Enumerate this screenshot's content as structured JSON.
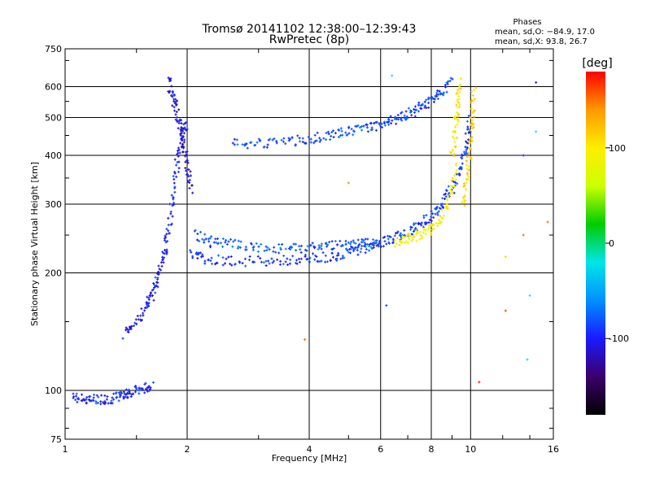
{
  "chart_data": {
    "type": "scatter",
    "title": "Tromsø 20141102 12:38:00–12:39:43",
    "subtitle": "RwPretec (8p)",
    "xlabel": "Frequency [MHz]",
    "ylabel": "Stationary phase Virtual Height [km]",
    "x_scale": "log",
    "y_scale": "log",
    "xlim": [
      1,
      16
    ],
    "ylim": [
      75,
      750
    ],
    "xticks": [
      1,
      2,
      4,
      6,
      8,
      10,
      16
    ],
    "yticks": [
      75,
      100,
      200,
      300,
      400,
      500,
      600,
      750
    ],
    "grid": true,
    "stats": {
      "heading": "Phases",
      "line_o": "mean, sd,O: −84.9, 17.0",
      "line_x": "mean, sd,X:  93.8, 26.7"
    },
    "colorbar": {
      "label": "[deg]",
      "ticks": [
        100,
        0,
        -100
      ],
      "range": [
        -180,
        180
      ],
      "colors": [
        "#000000",
        "#3b006b",
        "#1a1aff",
        "#0090ff",
        "#00e6e6",
        "#00cc00",
        "#ccff00",
        "#ffee00",
        "#ff9900",
        "#ff0000"
      ]
    },
    "traces": [
      {
        "x": [
          1.05,
          1.12,
          1.2,
          1.3,
          1.38,
          1.45,
          1.55,
          1.65
        ],
        "y": [
          96,
          95,
          95,
          95,
          97,
          99,
          101,
          102
        ],
        "phase": -95
      },
      {
        "x": [
          1.4,
          1.5,
          1.6,
          1.65,
          1.7,
          1.75,
          1.8,
          1.85,
          1.9,
          1.95,
          2.0
        ],
        "y": [
          140,
          150,
          165,
          180,
          200,
          220,
          260,
          320,
          400,
          450,
          480
        ],
        "phase": -100
      },
      {
        "x": [
          1.8,
          1.85,
          1.9,
          1.95,
          2.0,
          2.05
        ],
        "y": [
          620,
          560,
          500,
          440,
          380,
          320
        ],
        "phase": -110
      },
      {
        "x": [
          2.05,
          2.2,
          2.5,
          3.0,
          3.5,
          4.0,
          4.5,
          5.0,
          5.5,
          6.0,
          6.5,
          7.0,
          7.5,
          8.0,
          8.5,
          9.0,
          9.5,
          9.8,
          10.0
        ],
        "y": [
          225,
          218,
          215,
          214,
          215,
          217,
          220,
          225,
          232,
          240,
          245,
          255,
          265,
          280,
          300,
          330,
          380,
          430,
          500
        ],
        "phase": -90
      },
      {
        "x": [
          2.1,
          2.3,
          2.6,
          3.0,
          3.5,
          4.0,
          4.5,
          5.0,
          5.5,
          6.0
        ],
        "y": [
          250,
          240,
          236,
          232,
          230,
          232,
          234,
          236,
          238,
          240
        ],
        "phase": -80
      },
      {
        "x": [
          2.6,
          3.0,
          3.5,
          4.0,
          4.5,
          5.0,
          5.5,
          6.0,
          6.5,
          7.0,
          7.5,
          8.0,
          8.5,
          9.0
        ],
        "y": [
          430,
          430,
          432,
          440,
          450,
          460,
          470,
          480,
          495,
          510,
          530,
          550,
          580,
          620
        ],
        "phase": -85
      },
      {
        "x": [
          6.5,
          7.0,
          7.5,
          8.0,
          8.5,
          9.0,
          9.2
        ],
        "y": [
          240,
          245,
          250,
          260,
          280,
          320,
          380
        ],
        "phase": 90
      },
      {
        "x": [
          9.6,
          9.8,
          10.0,
          10.1,
          10.2
        ],
        "y": [
          300,
          350,
          420,
          500,
          600
        ],
        "phase": 110
      },
      {
        "x": [
          9.0,
          9.2,
          9.3,
          9.4
        ],
        "y": [
          400,
          470,
          550,
          620
        ],
        "phase": 100
      }
    ],
    "points": [
      {
        "x": 3.9,
        "y": 135,
        "phase": 150
      },
      {
        "x": 5.0,
        "y": 340,
        "phase": 140
      },
      {
        "x": 6.2,
        "y": 165,
        "phase": -90
      },
      {
        "x": 6.4,
        "y": 640,
        "phase": -20
      },
      {
        "x": 10.5,
        "y": 105,
        "phase": 170
      },
      {
        "x": 12.2,
        "y": 160,
        "phase": 160
      },
      {
        "x": 12.2,
        "y": 220,
        "phase": 110
      },
      {
        "x": 13.5,
        "y": 400,
        "phase": -100
      },
      {
        "x": 13.5,
        "y": 250,
        "phase": 150
      },
      {
        "x": 14.5,
        "y": 615,
        "phase": -110
      },
      {
        "x": 14.5,
        "y": 460,
        "phase": -20
      },
      {
        "x": 15.5,
        "y": 270,
        "phase": 150
      },
      {
        "x": 14.0,
        "y": 175,
        "phase": -20
      },
      {
        "x": 13.8,
        "y": 120,
        "phase": -20
      }
    ]
  }
}
